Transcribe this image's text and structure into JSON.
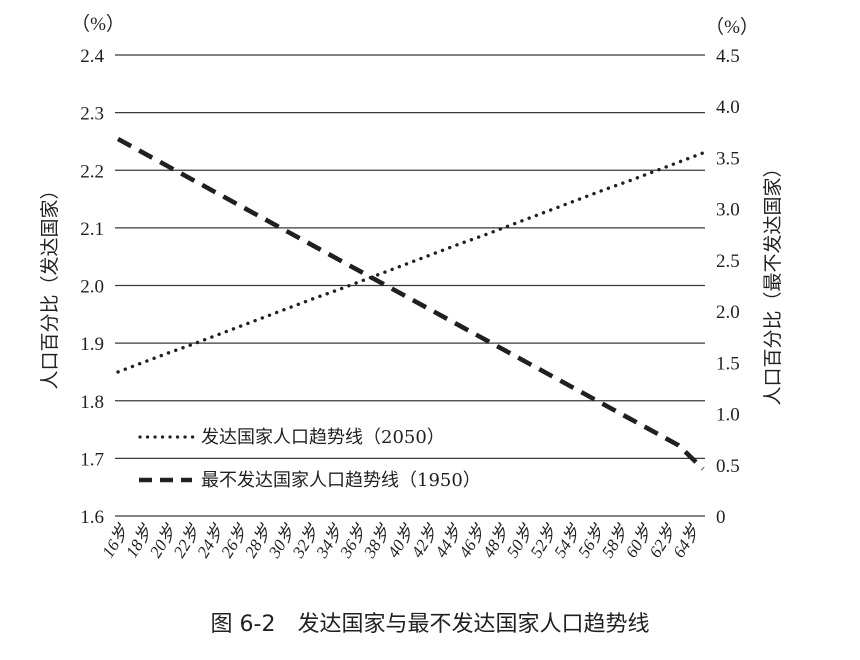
{
  "chart_data": {
    "type": "line",
    "title": "图 6-2　发达国家与最不发达国家人口趋势线",
    "xlabel": "",
    "ylabel": "人口百分比（发达国家）",
    "ylabel_right": "人口百分比（最不发达国家）",
    "y_unit_left": "（%）",
    "y_unit_right": "（%）",
    "ylim": [
      1.6,
      2.4
    ],
    "ylim_right": [
      0,
      4.5
    ],
    "yticks_left": [
      "2.4",
      "2.3",
      "2.2",
      "2.1",
      "2.0",
      "1.9",
      "1.8",
      "1.7",
      "1.6"
    ],
    "yticks_right": [
      "4.5",
      "4.0",
      "3.5",
      "3.0",
      "2.5",
      "2.0",
      "1.5",
      "1.0",
      "0.5",
      "0"
    ],
    "grid": true,
    "legend_position": "lower-left inside",
    "categories": [
      "16岁",
      "18岁",
      "20岁",
      "22岁",
      "24岁",
      "26岁",
      "28岁",
      "30岁",
      "32岁",
      "34岁",
      "36岁",
      "38岁",
      "40岁",
      "42岁",
      "44岁",
      "46岁",
      "48岁",
      "50岁",
      "52岁",
      "54岁",
      "56岁",
      "58岁",
      "60岁",
      "62岁",
      "64岁"
    ],
    "series": [
      {
        "name": "发达国家人口趋势线（2050）",
        "axis": "left",
        "style": "dotted",
        "values": [
          1.85,
          1.866,
          1.882,
          1.897,
          1.913,
          1.929,
          1.945,
          1.961,
          1.977,
          1.992,
          2.008,
          2.024,
          2.04,
          2.056,
          2.072,
          2.087,
          2.103,
          2.119,
          2.135,
          2.151,
          2.167,
          2.182,
          2.198,
          2.214,
          2.23
        ]
      },
      {
        "name": "最不发达国家人口趋势线（1950）",
        "axis": "right",
        "style": "dashed",
        "values": [
          3.68,
          3.55,
          3.42,
          3.29,
          3.16,
          3.03,
          2.9,
          2.77,
          2.64,
          2.51,
          2.38,
          2.25,
          2.12,
          1.99,
          1.86,
          1.73,
          1.6,
          1.47,
          1.34,
          1.21,
          1.08,
          0.95,
          0.82,
          0.69,
          0.46
        ]
      }
    ]
  },
  "legend": {
    "developed": "发达国家人口趋势线（2050）",
    "least_developed": "最不发达国家人口趋势线（1950）"
  },
  "axes": {
    "left_unit": "（%）",
    "right_unit": "（%）",
    "left_label": "人口百分比（发达国家）",
    "right_label": "人口百分比（最不发达国家）"
  },
  "caption": "图 6-2　发达国家与最不发达国家人口趋势线"
}
